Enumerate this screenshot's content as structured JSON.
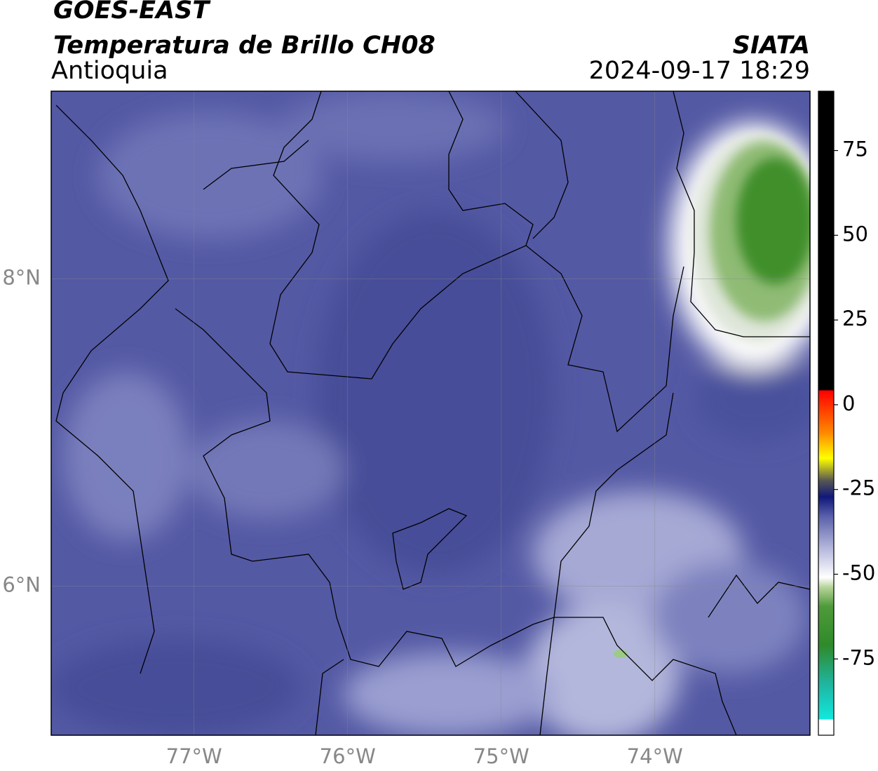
{
  "chart_data": {
    "type": "map",
    "title": "GOES-EAST",
    "subtitle": "Temperatura de Brillo CH08",
    "region": "Antioquia",
    "source": "SIATA",
    "timestamp": "2024-09-17 18:29",
    "xlim": [
      -77.93,
      -72.99
    ],
    "ylim": [
      5.03,
      9.22
    ],
    "xticks": [
      {
        "value": -77,
        "label": "77°W"
      },
      {
        "value": -76,
        "label": "76°W"
      },
      {
        "value": -75,
        "label": "75°W"
      },
      {
        "value": -74,
        "label": "74°W"
      }
    ],
    "yticks": [
      {
        "value": 6,
        "label": "6°N"
      },
      {
        "value": 8,
        "label": "8°N"
      }
    ],
    "grid": true,
    "colorbar": {
      "clim": [
        -97.5,
        92.5
      ],
      "ticks": [
        -75,
        -50,
        -25,
        0,
        25,
        50,
        75
      ]
    }
  }
}
